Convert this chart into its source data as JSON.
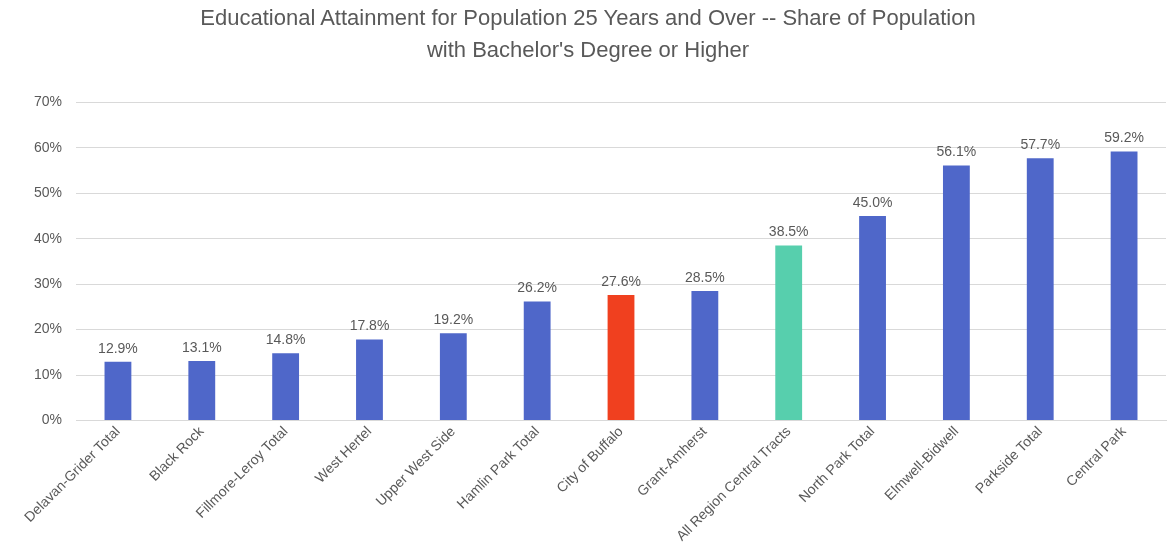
{
  "chart_data": {
    "type": "bar",
    "title": "Educational Attainment for Population 25 Years and Over -- Share of Population\nwith Bachelor's Degree or Higher",
    "categories": [
      "Delavan-Grider Total",
      "Black Rock",
      "Fillmore-Leroy Total",
      "West Hertel",
      "Upper West Side",
      "Hamlin Park Total",
      "City of Buffalo",
      "Grant-Amherst",
      "All Region Central Tracts",
      "North Park Total",
      "Elmwell-Bidwell",
      "Parkside Total",
      "Central Park"
    ],
    "values": [
      12.9,
      13.1,
      14.8,
      17.8,
      19.2,
      26.2,
      27.6,
      28.5,
      38.5,
      45.0,
      56.1,
      57.7,
      59.2
    ],
    "colors": [
      "#4f67c9",
      "#4f67c9",
      "#4f67c9",
      "#4f67c9",
      "#4f67c9",
      "#4f67c9",
      "#f0401f",
      "#4f67c9",
      "#57cfad",
      "#4f67c9",
      "#4f67c9",
      "#4f67c9",
      "#4f67c9"
    ],
    "value_labels": [
      "12.9%",
      "13.1%",
      "14.8%",
      "17.8%",
      "19.2%",
      "26.2%",
      "27.6%",
      "28.5%",
      "38.5%",
      "45.0%",
      "56.1%",
      "57.7%",
      "59.2%"
    ],
    "ylim": [
      0,
      70
    ],
    "yticks": [
      {
        "value": 0,
        "label": "0%"
      },
      {
        "value": 10,
        "label": "10%"
      },
      {
        "value": 20,
        "label": "20%"
      },
      {
        "value": 30,
        "label": "30%"
      },
      {
        "value": 40,
        "label": "40%"
      },
      {
        "value": 50,
        "label": "50%"
      },
      {
        "value": 60,
        "label": "60%"
      },
      {
        "value": 70,
        "label": "70%"
      }
    ],
    "grid": "y",
    "legend": false
  }
}
